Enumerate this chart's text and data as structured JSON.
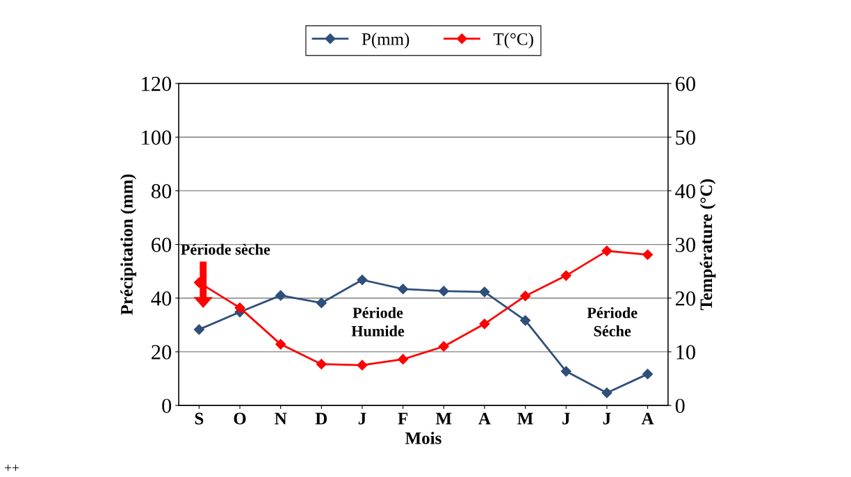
{
  "chart_data": {
    "type": "line",
    "xlabel": "Mois",
    "ylabel": "Précipitation (mm)",
    "y2label": "Température (°C)",
    "categories": [
      "S",
      "O",
      "N",
      "D",
      "J",
      "F",
      "M",
      "A",
      "M",
      "J",
      "J",
      "A"
    ],
    "series": [
      {
        "name": "P(mm)",
        "color": "#2e4f7a",
        "values": [
          28.3,
          34.8,
          41,
          38.2,
          46.8,
          43.4,
          42.6,
          42.3,
          31.7,
          12.7,
          4.7,
          11.7
        ]
      },
      {
        "name": "T(°C)",
        "color": "#ff0000",
        "axis": "y2",
        "values": [
          22.9,
          18.2,
          11.4,
          7.7,
          7.5,
          8.6,
          11.0,
          15.2,
          20.4,
          24.2,
          28.8,
          28.1
        ]
      }
    ],
    "ylim": [
      0,
      120
    ],
    "yticks": [
      0,
      20,
      40,
      60,
      80,
      100,
      120
    ],
    "y2lim": [
      0,
      60
    ],
    "y2ticks": [
      0,
      10,
      20,
      30,
      40,
      50,
      60
    ],
    "grid": "y",
    "legend": "top",
    "marker": "diamond",
    "line_style": "solid",
    "annotations": [
      "Période sèche",
      "Période Humide",
      "Période Séche",
      "++"
    ]
  }
}
